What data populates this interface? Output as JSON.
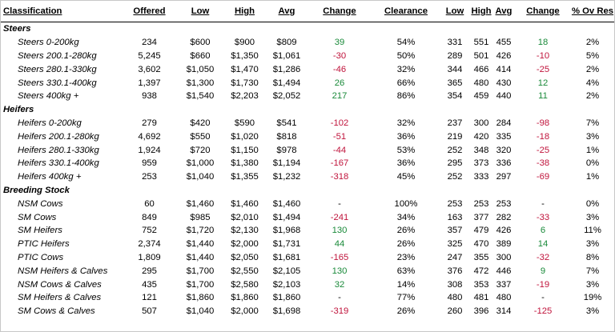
{
  "headers": [
    "Classification",
    "Offered",
    "Low",
    "High",
    "Avg",
    "Change",
    "Clearance",
    "Low",
    "High",
    "Avg",
    "Change",
    "% Ov Res"
  ],
  "sections": [
    {
      "title": "Steers",
      "rows": [
        [
          "Steers 0-200kg",
          "234",
          "$600",
          "$900",
          "$809",
          "39",
          "54%",
          "331",
          "551",
          "455",
          "18",
          "2%"
        ],
        [
          "Steers 200.1-280kg",
          "5,245",
          "$660",
          "$1,350",
          "$1,061",
          "-30",
          "50%",
          "289",
          "501",
          "426",
          "-10",
          "5%"
        ],
        [
          "Steers 280.1-330kg",
          "3,602",
          "$1,050",
          "$1,470",
          "$1,286",
          "-46",
          "32%",
          "344",
          "466",
          "414",
          "-25",
          "2%"
        ],
        [
          "Steers 330.1-400kg",
          "1,397",
          "$1,300",
          "$1,730",
          "$1,494",
          "26",
          "66%",
          "365",
          "480",
          "430",
          "12",
          "4%"
        ],
        [
          "Steers 400kg +",
          "938",
          "$1,540",
          "$2,203",
          "$2,052",
          "217",
          "86%",
          "354",
          "459",
          "440",
          "11",
          "2%"
        ]
      ]
    },
    {
      "title": "Heifers",
      "rows": [
        [
          "Heifers 0-200kg",
          "279",
          "$420",
          "$590",
          "$541",
          "-102",
          "32%",
          "237",
          "300",
          "284",
          "-98",
          "7%"
        ],
        [
          "Heifers 200.1-280kg",
          "4,692",
          "$550",
          "$1,020",
          "$818",
          "-51",
          "36%",
          "219",
          "420",
          "335",
          "-18",
          "3%"
        ],
        [
          "Heifers 280.1-330kg",
          "1,924",
          "$720",
          "$1,150",
          "$978",
          "-44",
          "53%",
          "252",
          "348",
          "320",
          "-25",
          "1%"
        ],
        [
          "Heifers 330.1-400kg",
          "959",
          "$1,000",
          "$1,380",
          "$1,194",
          "-167",
          "36%",
          "295",
          "373",
          "336",
          "-38",
          "0%"
        ],
        [
          "Heifers 400kg +",
          "253",
          "$1,040",
          "$1,355",
          "$1,232",
          "-318",
          "45%",
          "252",
          "333",
          "297",
          "-69",
          "1%"
        ]
      ]
    },
    {
      "title": "Breeding Stock",
      "rows": [
        [
          "NSM Cows",
          "60",
          "$1,460",
          "$1,460",
          "$1,460",
          "-",
          "100%",
          "253",
          "253",
          "253",
          "-",
          "0%"
        ],
        [
          "SM Cows",
          "849",
          "$985",
          "$2,010",
          "$1,494",
          "-241",
          "34%",
          "163",
          "377",
          "282",
          "-33",
          "3%"
        ],
        [
          "SM Heifers",
          "752",
          "$1,720",
          "$2,130",
          "$1,968",
          "130",
          "26%",
          "357",
          "479",
          "426",
          "6",
          "11%"
        ],
        [
          "PTIC Heifers",
          "2,374",
          "$1,440",
          "$2,000",
          "$1,731",
          "44",
          "26%",
          "325",
          "470",
          "389",
          "14",
          "3%"
        ],
        [
          "PTIC Cows",
          "1,809",
          "$1,440",
          "$2,050",
          "$1,681",
          "-165",
          "23%",
          "247",
          "355",
          "300",
          "-32",
          "8%"
        ],
        [
          "NSM Heifers & Calves",
          "295",
          "$1,700",
          "$2,550",
          "$2,105",
          "130",
          "63%",
          "376",
          "472",
          "446",
          "9",
          "7%"
        ],
        [
          "NSM Cows & Calves",
          "435",
          "$1,700",
          "$2,580",
          "$2,103",
          "32",
          "14%",
          "308",
          "353",
          "337",
          "-19",
          "3%"
        ],
        [
          "SM Heifers & Calves",
          "121",
          "$1,860",
          "$1,860",
          "$1,860",
          "-",
          "77%",
          "480",
          "481",
          "480",
          "-",
          "19%"
        ],
        [
          "SM Cows & Calves",
          "507",
          "$1,040",
          "$2,000",
          "$1,698",
          "-319",
          "26%",
          "260",
          "396",
          "314",
          "-125",
          "3%"
        ]
      ]
    }
  ],
  "colors": {
    "positive": "#1a8a3a",
    "negative": "#c0143c"
  }
}
